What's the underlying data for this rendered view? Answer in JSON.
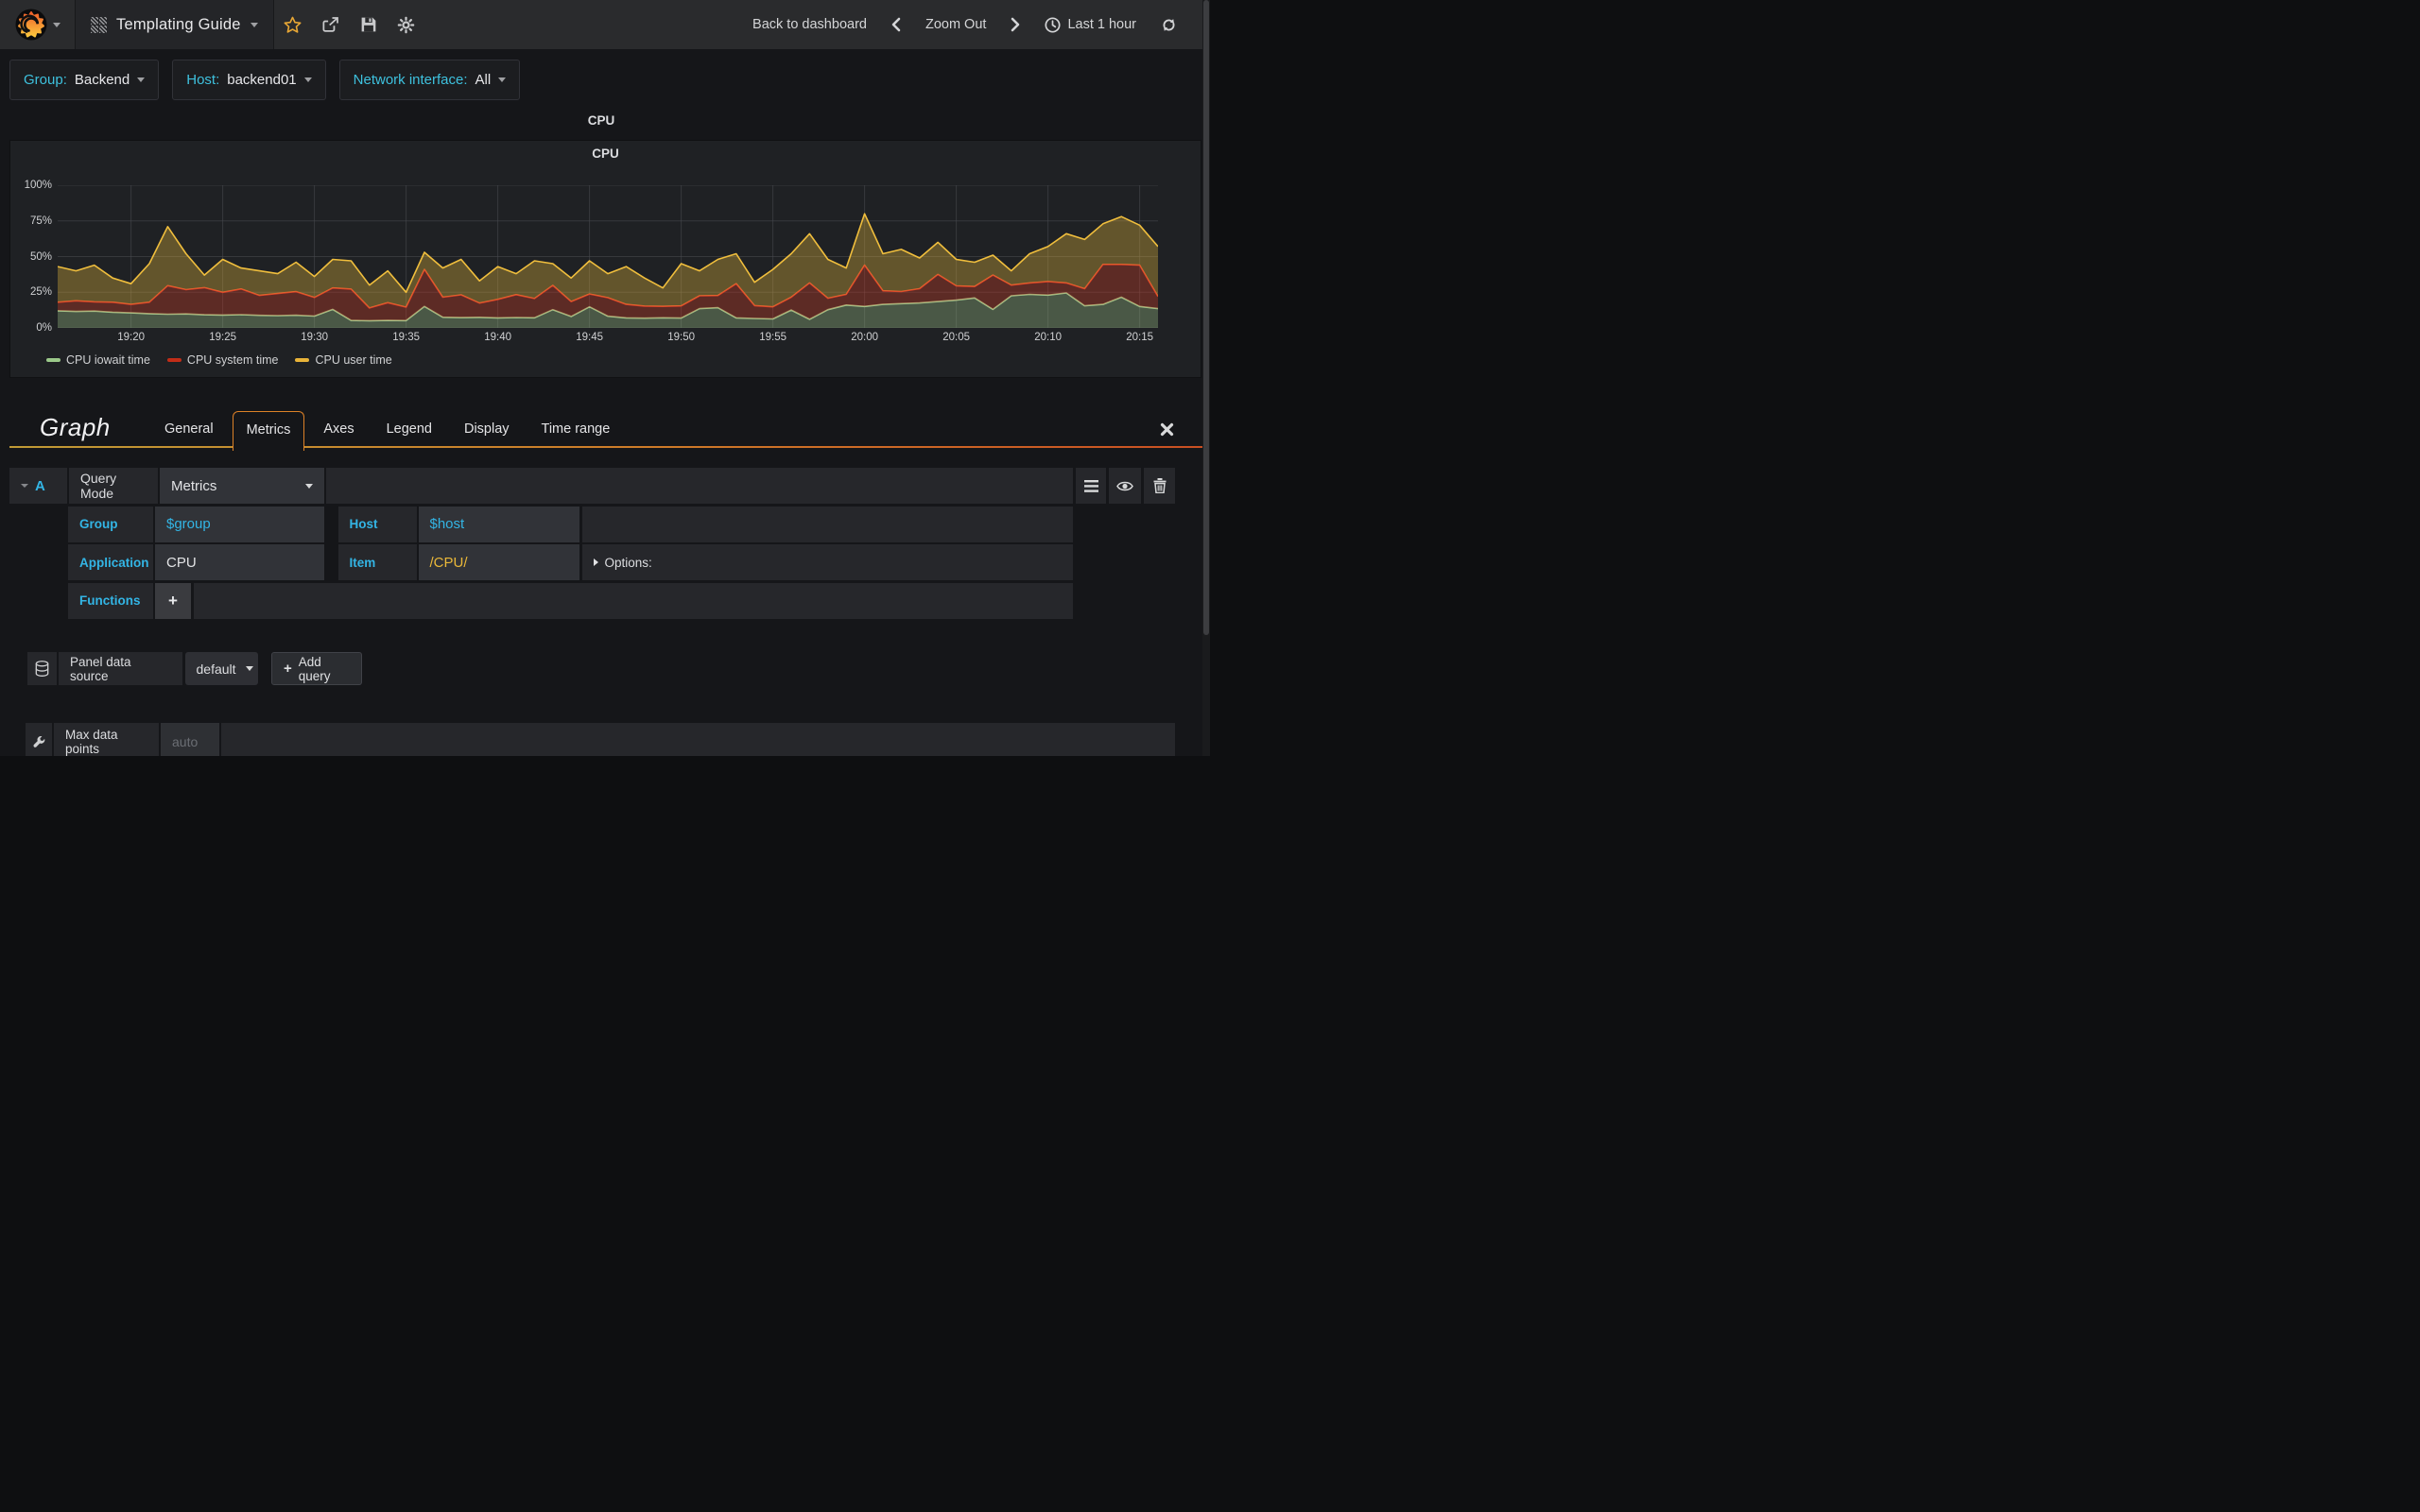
{
  "navbar": {
    "dashboard_title": "Templating Guide",
    "back_to_dashboard": "Back to dashboard",
    "zoom_out": "Zoom Out",
    "time_range": "Last 1 hour"
  },
  "template_vars": [
    {
      "label": "Group:",
      "value": "Backend"
    },
    {
      "label": "Host:",
      "value": "backend01"
    },
    {
      "label": "Network interface:",
      "value": "All"
    }
  ],
  "row_title": "CPU",
  "panel": {
    "title": "CPU"
  },
  "colors": {
    "accent_blue": "#33b5e5",
    "variable_cyan": "#3ec1de",
    "regex_gold": "#eab839",
    "tab_border_orange": "#dd8127",
    "star_orange": "#e8a735"
  },
  "chart_data": {
    "type": "area",
    "stacked": true,
    "unit": "percent",
    "title": "CPU",
    "ylim": [
      0,
      100
    ],
    "grid": true,
    "legend_position": "bottom-left",
    "y_tick_labels": [
      "0%",
      "25%",
      "50%",
      "75%",
      "100%"
    ],
    "y_grid_values": [
      0,
      25,
      50,
      75,
      100
    ],
    "start_time": "19:16",
    "end_time": "20:16",
    "interval_minutes": 1,
    "x_ticks": [
      {
        "label": "19:20",
        "t": 4
      },
      {
        "label": "19:25",
        "t": 9
      },
      {
        "label": "19:30",
        "t": 14
      },
      {
        "label": "19:35",
        "t": 19
      },
      {
        "label": "19:40",
        "t": 24
      },
      {
        "label": "19:45",
        "t": 29
      },
      {
        "label": "19:50",
        "t": 34
      },
      {
        "label": "19:55",
        "t": 39
      },
      {
        "label": "20:00",
        "t": 44
      },
      {
        "label": "20:05",
        "t": 49
      },
      {
        "label": "20:10",
        "t": 54
      },
      {
        "label": "20:15",
        "t": 59
      }
    ],
    "series": [
      {
        "name": "CPU iowait time",
        "color": "#a3c98c",
        "fill": "rgba(163,201,140,0.33)",
        "legend_color": "#9bc98a",
        "values": [
          12,
          11.5,
          11.8,
          11,
          10.5,
          10,
          9.6,
          9.8,
          9.2,
          9,
          9.3,
          8.8,
          8.6,
          8.9,
          8.3,
          13,
          5.2,
          5,
          5.2,
          5.1,
          15,
          7.5,
          7.2,
          7.4,
          7,
          7.3,
          7.1,
          12.8,
          8,
          14.8,
          8.2,
          7,
          6.8,
          7.1,
          6.9,
          13.5,
          14.2,
          7,
          6.6,
          6.3,
          12.5,
          6,
          12.8,
          16,
          15,
          16.5,
          17,
          17.5,
          18.5,
          19.5,
          21,
          13,
          22.5,
          23.5,
          23,
          24.5,
          15.5,
          16.5,
          21.5,
          15,
          13.5
        ]
      },
      {
        "name": "CPU system time",
        "color": "#dd4128",
        "fill": "rgba(221,65,40,0.33)",
        "legend_color": "#c22d17",
        "values": [
          6,
          7.5,
          6.5,
          7,
          6,
          8,
          20,
          17,
          19,
          16,
          18,
          14,
          15.5,
          16.5,
          13,
          15,
          22,
          9,
          12.5,
          9.5,
          26,
          14,
          16,
          10,
          13,
          16,
          13.5,
          17,
          10.5,
          9,
          13,
          9.5,
          8.5,
          8,
          8.5,
          9,
          8.5,
          24,
          9,
          8.5,
          9,
          25.5,
          8,
          7.5,
          29,
          9.5,
          8.5,
          10,
          19,
          10,
          8,
          24,
          7.5,
          8,
          9.5,
          7,
          12,
          28,
          23,
          29,
          8.5
        ]
      },
      {
        "name": "CPU user time",
        "color": "#f0be3d",
        "fill": "rgba(240,190,61,0.33)",
        "legend_color": "#e8b339",
        "values": [
          25,
          21,
          25.7,
          17,
          14.5,
          27,
          41.4,
          25.2,
          8.8,
          23,
          14.7,
          17.2,
          13.9,
          20.6,
          14.7,
          20,
          19.8,
          16,
          22.3,
          10.4,
          12,
          20.5,
          24.8,
          15.6,
          23,
          14.7,
          26.4,
          15.2,
          16.5,
          23.2,
          16.8,
          26.5,
          19.7,
          12.9,
          29.6,
          17.5,
          25.3,
          21,
          16.4,
          26.2,
          30.5,
          34.5,
          27.2,
          18.5,
          36,
          26,
          29.5,
          21.5,
          22.5,
          18.5,
          17,
          14,
          10,
          20.5,
          24.5,
          34.5,
          34.5,
          28.5,
          33.5,
          28,
          35
        ]
      }
    ]
  },
  "editor": {
    "panel_type": "Graph",
    "tabs": [
      "General",
      "Metrics",
      "Axes",
      "Legend",
      "Display",
      "Time range"
    ],
    "active_tab": "Metrics",
    "query": {
      "ref": "A",
      "query_mode_label": "Query Mode",
      "query_mode_value": "Metrics",
      "group_label": "Group",
      "group_value": "$group",
      "host_label": "Host",
      "host_value": "$host",
      "application_label": "Application",
      "application_value": "CPU",
      "item_label": "Item",
      "item_value": "/CPU/",
      "options_label": "Options:",
      "functions_label": "Functions",
      "add_function_label": "+"
    },
    "datasource": {
      "label": "Panel data source",
      "value": "default",
      "add_query_plus": "+",
      "add_query_label": "Add query"
    },
    "max_data_points": {
      "label": "Max data points",
      "placeholder": "auto"
    }
  }
}
